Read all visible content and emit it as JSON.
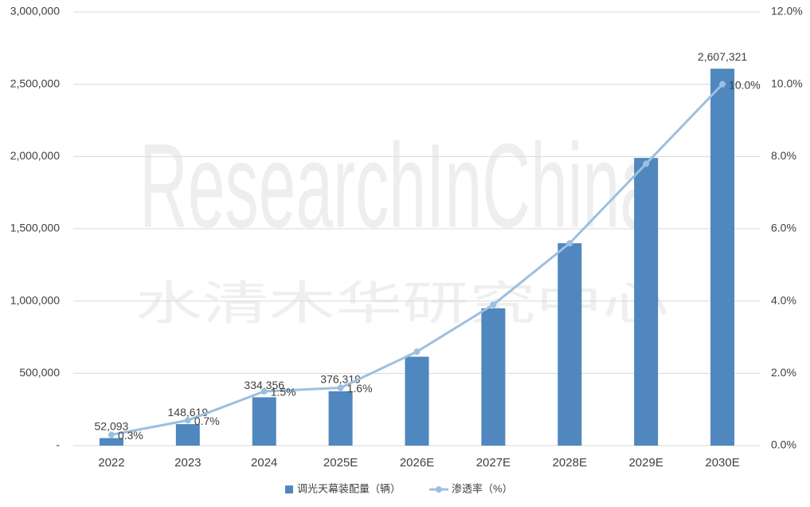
{
  "chart_data": {
    "type": "bar",
    "watermark": [
      "ResearchInChina",
      "水清木华研究中心"
    ],
    "categories": [
      "2022",
      "2023",
      "2024",
      "2025E",
      "2026E",
      "2027E",
      "2028E",
      "2029E",
      "2030E"
    ],
    "series": [
      {
        "name": "调光天幕装配量（辆）",
        "color": "#4f87be",
        "values": [
          52093,
          148619,
          334356,
          376319,
          615000,
          950000,
          1400000,
          1990000,
          2607321
        ],
        "value_labels": [
          "52,093",
          "148,619",
          "334,356",
          "376,319",
          null,
          null,
          null,
          null,
          "2,607,321"
        ]
      },
      {
        "name": "渗透率（%）",
        "color": "#9dbfdf",
        "type": "line",
        "axis": "y2",
        "values": [
          0.3,
          0.7,
          1.5,
          1.6,
          2.6,
          3.9,
          5.6,
          7.8,
          10.0
        ],
        "value_labels": [
          "0.3%",
          "0.7%",
          "1.5%",
          "1.6%",
          null,
          null,
          null,
          null,
          "10.0%"
        ]
      }
    ],
    "ylim": [
      0,
      3000000
    ],
    "yticks": [
      {
        "value": 0,
        "label": "-"
      },
      {
        "value": 500000,
        "label": "500,000"
      },
      {
        "value": 1000000,
        "label": "1,000,000"
      },
      {
        "value": 1500000,
        "label": "1,500,000"
      },
      {
        "value": 2000000,
        "label": "2,000,000"
      },
      {
        "value": 2500000,
        "label": "2,500,000"
      },
      {
        "value": 3000000,
        "label": "3,000,000"
      }
    ],
    "y2lim": [
      0,
      12
    ],
    "y2ticks": [
      {
        "value": 0,
        "label": "0.0%"
      },
      {
        "value": 2,
        "label": "2.0%"
      },
      {
        "value": 4,
        "label": "4.0%"
      },
      {
        "value": 6,
        "label": "6.0%"
      },
      {
        "value": 8,
        "label": "8.0%"
      },
      {
        "value": 10,
        "label": "10.0%"
      },
      {
        "value": 12,
        "label": "12.0%"
      }
    ],
    "grid": true,
    "legend": "bottom"
  }
}
